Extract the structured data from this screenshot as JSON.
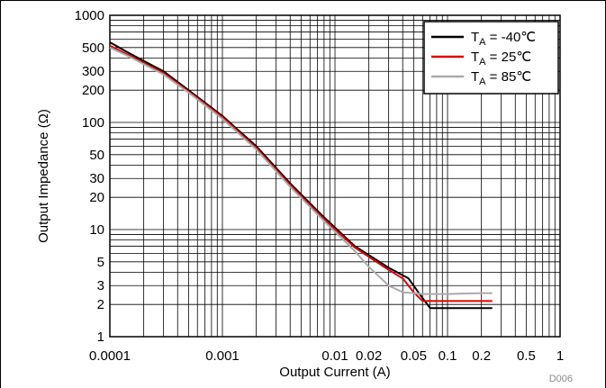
{
  "chart_data": {
    "type": "line",
    "x_scale": "log",
    "y_scale": "log",
    "xlim": [
      0.0001,
      1
    ],
    "ylim": [
      1,
      1000
    ],
    "xlabel": "Output Current (A)",
    "ylabel": "Output Impedance (Ω)",
    "x_ticks": [
      {
        "value": 0.0001,
        "label": "0.0001"
      },
      {
        "value": 0.001,
        "label": "0.001"
      },
      {
        "value": 0.01,
        "label": "0.01"
      },
      {
        "value": 0.02,
        "label": "0.02"
      },
      {
        "value": 0.05,
        "label": "0.05"
      },
      {
        "value": 0.1,
        "label": "0.1"
      },
      {
        "value": 0.2,
        "label": "0.2"
      },
      {
        "value": 0.5,
        "label": "0.5"
      },
      {
        "value": 1,
        "label": "1"
      }
    ],
    "y_ticks": [
      {
        "value": 1,
        "label": "1"
      },
      {
        "value": 2,
        "label": "2"
      },
      {
        "value": 3,
        "label": "3"
      },
      {
        "value": 5,
        "label": "5"
      },
      {
        "value": 10,
        "label": "10"
      },
      {
        "value": 20,
        "label": "20"
      },
      {
        "value": 30,
        "label": "30"
      },
      {
        "value": 50,
        "label": "50"
      },
      {
        "value": 100,
        "label": "100"
      },
      {
        "value": 200,
        "label": "200"
      },
      {
        "value": 300,
        "label": "300"
      },
      {
        "value": 500,
        "label": "500"
      },
      {
        "value": 1000,
        "label": "1000"
      }
    ],
    "grid": true,
    "legend": {
      "placement": "top-right"
    },
    "series": [
      {
        "name": "TA = -40℃",
        "legend_main": "T",
        "legend_sub": "A",
        "legend_rest": " = -40℃",
        "color": "#000000",
        "points": [
          [
            0.0001,
            560
          ],
          [
            0.00015,
            440
          ],
          [
            0.0003,
            300
          ],
          [
            0.0005,
            200
          ],
          [
            0.001,
            115
          ],
          [
            0.002,
            60
          ],
          [
            0.004,
            27
          ],
          [
            0.008,
            13
          ],
          [
            0.015,
            7
          ],
          [
            0.03,
            4.4
          ],
          [
            0.045,
            3.5
          ],
          [
            0.055,
            2.6
          ],
          [
            0.07,
            1.85
          ],
          [
            0.1,
            1.85
          ],
          [
            0.2,
            1.85
          ],
          [
            0.25,
            1.85
          ]
        ]
      },
      {
        "name": "TA = 25℃",
        "legend_main": "T",
        "legend_sub": "A",
        "legend_rest": " = 25℃",
        "color": "#e00000",
        "points": [
          [
            0.0001,
            520
          ],
          [
            0.00015,
            420
          ],
          [
            0.0003,
            290
          ],
          [
            0.0005,
            195
          ],
          [
            0.001,
            112
          ],
          [
            0.002,
            58
          ],
          [
            0.004,
            26
          ],
          [
            0.008,
            12.5
          ],
          [
            0.015,
            6.8
          ],
          [
            0.03,
            4.2
          ],
          [
            0.04,
            3.5
          ],
          [
            0.05,
            2.6
          ],
          [
            0.06,
            2.15
          ],
          [
            0.1,
            2.15
          ],
          [
            0.2,
            2.15
          ],
          [
            0.25,
            2.15
          ]
        ]
      },
      {
        "name": "TA = 85℃",
        "legend_main": "T",
        "legend_sub": "A",
        "legend_rest": " = 85℃",
        "color": "#aaaaaa",
        "points": [
          [
            0.0001,
            500
          ],
          [
            0.00015,
            410
          ],
          [
            0.0003,
            280
          ],
          [
            0.0005,
            190
          ],
          [
            0.001,
            108
          ],
          [
            0.002,
            56
          ],
          [
            0.004,
            25
          ],
          [
            0.008,
            12
          ],
          [
            0.015,
            6.3
          ],
          [
            0.02,
            4.5
          ],
          [
            0.03,
            3.0
          ],
          [
            0.04,
            2.6
          ],
          [
            0.06,
            2.5
          ],
          [
            0.1,
            2.5
          ],
          [
            0.2,
            2.55
          ],
          [
            0.25,
            2.55
          ]
        ]
      }
    ]
  },
  "watermark": "D006"
}
